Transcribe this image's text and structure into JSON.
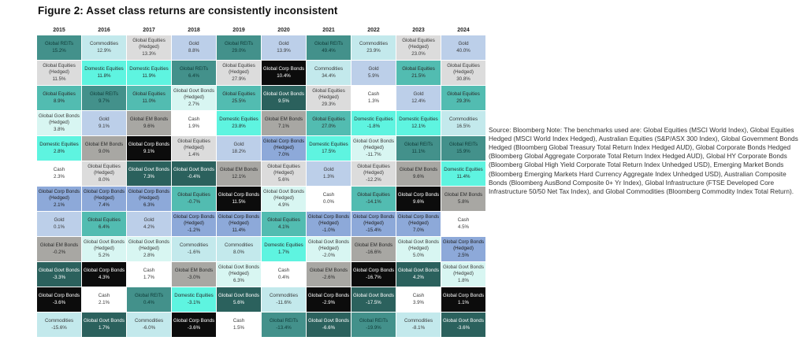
{
  "title": "Figure 2: Asset class returns are consistently inconsistent",
  "source_note": "Source: Bloomberg Note: The benchmarks used are: Global Equities (MSCI World Index), Global Equities Hedged (MSCI World Index Hedged), Australian Equities (S&P/ASX 300 Index), Global Government Bonds Hedged (Bloomberg Global Treasury Total Return Index Hedged AUD), Global Corporate Bonds Hedged (Bloomberg Global Aggregate Corporate Total Return Index Hedged AUD), Global HY Corporate Bonds (Bloomberg Global High Yield Corporate Total Return Index Unhedged USD), Emerging Market Bonds (Bloomberg Emerging Markets Hard Currency Aggregate Index Unhedged USD), Australian Composite Bonds (Bloomberg AusBond Composite 0+ Yr Index), Global Infrastructure (FTSE Developed Core Infrastructure 50/50 Net Tax Index), and Global Commodities (Bloomberg Commodity Index Total Return).",
  "asset_styles": {
    "Global REITs": {
      "bg": "#43918b",
      "fg": "#0f3b38"
    },
    "Global Equities": {
      "bg": "#52bcb1",
      "fg": "#2b2b2b"
    },
    "Global Equities (Hedged)": {
      "bg": "#dcdcdc",
      "fg": "#3a3a3a"
    },
    "Domestic Equities": {
      "bg": "#5ef4e0",
      "fg": "#2b2b2b"
    },
    "Global Govt Bonds (Hedged)": {
      "bg": "#d8f6f2",
      "fg": "#3a3a3a"
    },
    "Global Govt Bonds": {
      "bg": "#2b615d",
      "fg": "#ffffff"
    },
    "Global Corp Bonds (Hedged)": {
      "bg": "#8da9d9",
      "fg": "#1e1e1e"
    },
    "Global Corp Bonds": {
      "bg": "#0c0c0c",
      "fg": "#ffffff"
    },
    "Global EM Bonds": {
      "bg": "#a8a7a3",
      "fg": "#2b2b2b"
    },
    "Gold": {
      "bg": "#bccfe9",
      "fg": "#3a3a3a"
    },
    "Cash": {
      "bg": "#ffffff",
      "fg": "#3a3a3a"
    },
    "Commodities": {
      "bg": "#c3e9ec",
      "fg": "#3a3a3a"
    }
  },
  "chart_data": {
    "type": "heatmap",
    "subtype": "asset-return-quilt",
    "title": "Figure 2: Asset class returns are consistently inconsistent",
    "x_categories": [
      "2015",
      "2016",
      "2017",
      "2018",
      "2019",
      "2020",
      "2021",
      "2022",
      "2023",
      "2024"
    ],
    "legend_position": "none",
    "columns": [
      {
        "year": "2015",
        "cells": [
          {
            "asset": "Global REITs",
            "value": "15.2%"
          },
          {
            "asset": "Global Equities (Hedged)",
            "value": "11.5%"
          },
          {
            "asset": "Global Equities",
            "value": "8.9%"
          },
          {
            "asset": "Global Govt Bonds (Hedged)",
            "value": "3.8%"
          },
          {
            "asset": "Domestic Equities",
            "value": "2.8%"
          },
          {
            "asset": "Cash",
            "value": "2.3%"
          },
          {
            "asset": "Global Corp Bonds (Hedged)",
            "value": "2.1%"
          },
          {
            "asset": "Gold",
            "value": "0.1%"
          },
          {
            "asset": "Global EM Bonds",
            "value": "-0.2%"
          },
          {
            "asset": "Global Govt Bonds",
            "value": "-3.3%"
          },
          {
            "asset": "Global Corp Bonds",
            "value": "-3.6%"
          },
          {
            "asset": "Commodities",
            "value": "-15.6%"
          }
        ]
      },
      {
        "year": "2016",
        "cells": [
          {
            "asset": "Commodities",
            "value": "12.9%"
          },
          {
            "asset": "Domestic Equities",
            "value": "11.8%"
          },
          {
            "asset": "Global REITs",
            "value": "9.7%"
          },
          {
            "asset": "Gold",
            "value": "9.1%"
          },
          {
            "asset": "Global EM Bonds",
            "value": "9.0%"
          },
          {
            "asset": "Global Equities (Hedged)",
            "value": "8.0%"
          },
          {
            "asset": "Global Corp Bonds (Hedged)",
            "value": "7.4%"
          },
          {
            "asset": "Global Equities",
            "value": "6.4%"
          },
          {
            "asset": "Global Govt Bonds (Hedged)",
            "value": "5.2%"
          },
          {
            "asset": "Global Corp Bonds",
            "value": "4.3%"
          },
          {
            "asset": "Cash",
            "value": "2.1%"
          },
          {
            "asset": "Global Govt Bonds",
            "value": "1.7%"
          }
        ]
      },
      {
        "year": "2017",
        "cells": [
          {
            "asset": "Global Equities (Hedged)",
            "value": "13.3%"
          },
          {
            "asset": "Domestic Equities",
            "value": "11.9%"
          },
          {
            "asset": "Global Equities",
            "value": "11.0%"
          },
          {
            "asset": "Global EM Bonds",
            "value": "9.6%"
          },
          {
            "asset": "Global Corp Bonds",
            "value": "9.1%"
          },
          {
            "asset": "Global Govt Bonds",
            "value": "7.3%"
          },
          {
            "asset": "Global Corp Bonds (Hedged)",
            "value": "6.3%"
          },
          {
            "asset": "Gold",
            "value": "4.2%"
          },
          {
            "asset": "Global Govt Bonds (Hedged)",
            "value": "2.8%"
          },
          {
            "asset": "Cash",
            "value": "1.7%"
          },
          {
            "asset": "Global REITs",
            "value": "0.4%"
          },
          {
            "asset": "Commodities",
            "value": "-6.0%"
          }
        ]
      },
      {
        "year": "2018",
        "cells": [
          {
            "asset": "Gold",
            "value": "8.8%"
          },
          {
            "asset": "Global REITs",
            "value": "6.4%"
          },
          {
            "asset": "Global Govt Bonds (Hedged)",
            "value": "2.7%"
          },
          {
            "asset": "Cash",
            "value": "1.9%"
          },
          {
            "asset": "Global Equities (Hedged)",
            "value": "1.4%"
          },
          {
            "asset": "Global Govt Bonds",
            "value": "-0.4%"
          },
          {
            "asset": "Global Equities",
            "value": "-0.7%"
          },
          {
            "asset": "Global Corp Bonds (Hedged)",
            "value": "-1.2%"
          },
          {
            "asset": "Commodities",
            "value": "-1.6%"
          },
          {
            "asset": "Global EM Bonds",
            "value": "-3.0%"
          },
          {
            "asset": "Domestic Equities",
            "value": "-3.1%"
          },
          {
            "asset": "Global Corp Bonds",
            "value": "-3.6%"
          }
        ]
      },
      {
        "year": "2019",
        "cells": [
          {
            "asset": "Global REITs",
            "value": "29.0%"
          },
          {
            "asset": "Global Equities (Hedged)",
            "value": "27.9%"
          },
          {
            "asset": "Global Equities",
            "value": "25.5%"
          },
          {
            "asset": "Domestic Equities",
            "value": "23.8%"
          },
          {
            "asset": "Gold",
            "value": "18.2%"
          },
          {
            "asset": "Global EM Bonds",
            "value": "12.1%"
          },
          {
            "asset": "Global Corp Bonds",
            "value": "11.5%"
          },
          {
            "asset": "Global Corp Bonds (Hedged)",
            "value": "11.4%"
          },
          {
            "asset": "Commodities",
            "value": "8.0%"
          },
          {
            "asset": "Global Govt Bonds (Hedged)",
            "value": "6.3%"
          },
          {
            "asset": "Global Govt Bonds",
            "value": "5.6%"
          },
          {
            "asset": "Cash",
            "value": "1.5%"
          }
        ]
      },
      {
        "year": "2020",
        "cells": [
          {
            "asset": "Gold",
            "value": "13.9%"
          },
          {
            "asset": "Global Corp Bonds",
            "value": "10.4%"
          },
          {
            "asset": "Global Govt Bonds",
            "value": "9.5%"
          },
          {
            "asset": "Global EM Bonds",
            "value": "7.1%"
          },
          {
            "asset": "Global Corp Bonds (Hedged)",
            "value": "7.0%"
          },
          {
            "asset": "Global Equities (Hedged)",
            "value": "5.6%"
          },
          {
            "asset": "Global Govt Bonds (Hedged)",
            "value": "4.9%"
          },
          {
            "asset": "Global Equities",
            "value": "4.1%"
          },
          {
            "asset": "Domestic Equities",
            "value": "1.7%"
          },
          {
            "asset": "Cash",
            "value": "0.4%"
          },
          {
            "asset": "Commodities",
            "value": "-11.6%"
          },
          {
            "asset": "Global REITs",
            "value": "-13.4%"
          }
        ]
      },
      {
        "year": "2021",
        "cells": [
          {
            "asset": "Global REITs",
            "value": "49.4%"
          },
          {
            "asset": "Commodities",
            "value": "34.4%"
          },
          {
            "asset": "Global Equities (Hedged)",
            "value": "29.3%"
          },
          {
            "asset": "Global Equities",
            "value": "27.0%"
          },
          {
            "asset": "Domestic Equities",
            "value": "17.5%"
          },
          {
            "asset": "Gold",
            "value": "1.3%"
          },
          {
            "asset": "Cash",
            "value": "0.0%"
          },
          {
            "asset": "Global Corp Bonds (Hedged)",
            "value": "-1.0%"
          },
          {
            "asset": "Global Govt Bonds (Hedged)",
            "value": "-2.0%"
          },
          {
            "asset": "Global EM Bonds",
            "value": "-2.6%"
          },
          {
            "asset": "Global Corp Bonds",
            "value": "-2.9%"
          },
          {
            "asset": "Global Govt Bonds",
            "value": "-6.6%"
          }
        ]
      },
      {
        "year": "2022",
        "cells": [
          {
            "asset": "Commodities",
            "value": "23.9%"
          },
          {
            "asset": "Gold",
            "value": "5.9%"
          },
          {
            "asset": "Cash",
            "value": "1.3%"
          },
          {
            "asset": "Domestic Equities",
            "value": "-1.8%"
          },
          {
            "asset": "Global Govt Bonds (Hedged)",
            "value": "-11.7%"
          },
          {
            "asset": "Global Equities (Hedged)",
            "value": "-12.2%"
          },
          {
            "asset": "Global Equities",
            "value": "-14.1%"
          },
          {
            "asset": "Global Corp Bonds (Hedged)",
            "value": "-15.4%"
          },
          {
            "asset": "Global EM Bonds",
            "value": "-16.6%"
          },
          {
            "asset": "Global Corp Bonds",
            "value": "-16.7%"
          },
          {
            "asset": "Global Govt Bonds",
            "value": "-17.5%"
          },
          {
            "asset": "Global REITs",
            "value": "-19.9%"
          }
        ]
      },
      {
        "year": "2023",
        "cells": [
          {
            "asset": "Global Equities (Hedged)",
            "value": "23.0%"
          },
          {
            "asset": "Global Equities",
            "value": "21.5%"
          },
          {
            "asset": "Gold",
            "value": "12.4%"
          },
          {
            "asset": "Domestic Equities",
            "value": "12.1%"
          },
          {
            "asset": "Global REITs",
            "value": "11.1%"
          },
          {
            "asset": "Global EM Bonds",
            "value": "9.6%"
          },
          {
            "asset": "Global Corp Bonds",
            "value": "9.6%"
          },
          {
            "asset": "Global Corp Bonds (Hedged)",
            "value": "7.0%"
          },
          {
            "asset": "Global Govt Bonds (Hedged)",
            "value": "5.0%"
          },
          {
            "asset": "Global Govt Bonds",
            "value": "4.2%"
          },
          {
            "asset": "Cash",
            "value": "3.9%"
          },
          {
            "asset": "Commodities",
            "value": "-8.1%"
          }
        ]
      },
      {
        "year": "2024",
        "cells": [
          {
            "asset": "Gold",
            "value": "40.0%"
          },
          {
            "asset": "Global Equities (Hedged)",
            "value": "30.8%"
          },
          {
            "asset": "Global Equities",
            "value": "29.3%"
          },
          {
            "asset": "Commodities",
            "value": "16.5%"
          },
          {
            "asset": "Global REITs",
            "value": "15.9%"
          },
          {
            "asset": "Domestic Equities",
            "value": "11.4%"
          },
          {
            "asset": "Global EM Bonds",
            "value": "5.8%"
          },
          {
            "asset": "Cash",
            "value": "4.5%"
          },
          {
            "asset": "Global Corp Bonds (Hedged)",
            "value": "2.5%"
          },
          {
            "asset": "Global Govt Bonds (Hedged)",
            "value": "1.8%"
          },
          {
            "asset": "Global Corp Bonds",
            "value": "1.1%"
          },
          {
            "asset": "Global Govt Bonds",
            "value": "-3.6%"
          }
        ]
      }
    ]
  }
}
